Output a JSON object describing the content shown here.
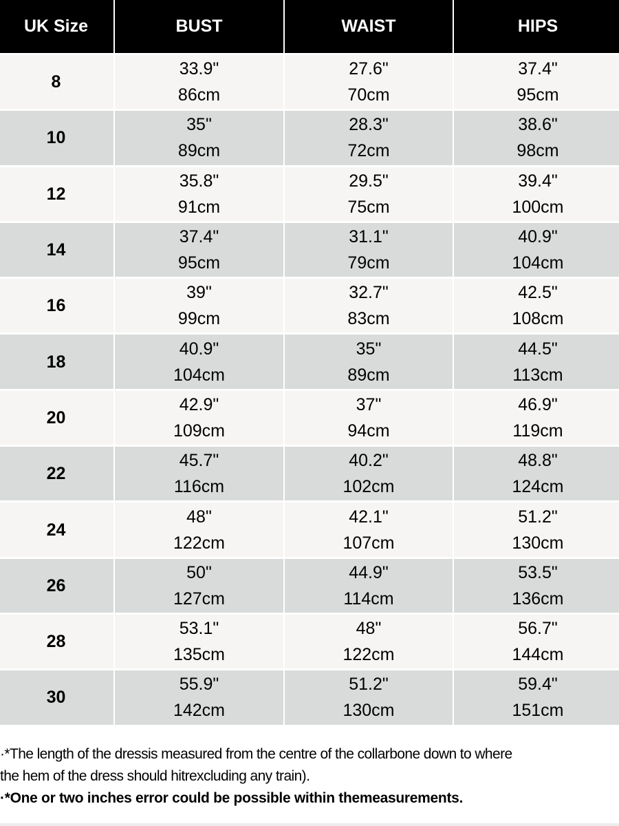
{
  "headers": [
    "UK Size",
    "BUST",
    "WAIST",
    "HIPS"
  ],
  "rows": [
    {
      "size": "8",
      "bust": [
        "33.9\"",
        "86cm"
      ],
      "waist": [
        "27.6\"",
        "70cm"
      ],
      "hips": [
        "37.4\"",
        "95cm"
      ]
    },
    {
      "size": "10",
      "bust": [
        "35\"",
        "89cm"
      ],
      "waist": [
        "28.3\"",
        "72cm"
      ],
      "hips": [
        "38.6\"",
        "98cm"
      ]
    },
    {
      "size": "12",
      "bust": [
        "35.8\"",
        "91cm"
      ],
      "waist": [
        "29.5\"",
        "75cm"
      ],
      "hips": [
        "39.4\"",
        "100cm"
      ]
    },
    {
      "size": "14",
      "bust": [
        "37.4\"",
        "95cm"
      ],
      "waist": [
        "31.1\"",
        "79cm"
      ],
      "hips": [
        "40.9\"",
        "104cm"
      ]
    },
    {
      "size": "16",
      "bust": [
        "39\"",
        "99cm"
      ],
      "waist": [
        "32.7\"",
        "83cm"
      ],
      "hips": [
        "42.5\"",
        "108cm"
      ]
    },
    {
      "size": "18",
      "bust": [
        "40.9\"",
        "104cm"
      ],
      "waist": [
        "35\"",
        "89cm"
      ],
      "hips": [
        "44.5\"",
        "113cm"
      ]
    },
    {
      "size": "20",
      "bust": [
        "42.9\"",
        "109cm"
      ],
      "waist": [
        "37\"",
        "94cm"
      ],
      "hips": [
        "46.9\"",
        "119cm"
      ]
    },
    {
      "size": "22",
      "bust": [
        "45.7\"",
        "116cm"
      ],
      "waist": [
        "40.2\"",
        "102cm"
      ],
      "hips": [
        "48.8\"",
        "124cm"
      ]
    },
    {
      "size": "24",
      "bust": [
        "48\"",
        "122cm"
      ],
      "waist": [
        "42.1\"",
        "107cm"
      ],
      "hips": [
        "51.2\"",
        "130cm"
      ]
    },
    {
      "size": "26",
      "bust": [
        "50\"",
        "127cm"
      ],
      "waist": [
        "44.9\"",
        "114cm"
      ],
      "hips": [
        "53.5\"",
        "136cm"
      ]
    },
    {
      "size": "28",
      "bust": [
        "53.1\"",
        "135cm"
      ],
      "waist": [
        "48\"",
        "122cm"
      ],
      "hips": [
        "56.7\"",
        "144cm"
      ]
    },
    {
      "size": "30",
      "bust": [
        "55.9\"",
        "142cm"
      ],
      "waist": [
        "51.2\"",
        "130cm"
      ],
      "hips": [
        "59.4\"",
        "151cm"
      ]
    }
  ],
  "notes": {
    "line1": "·*The length of the dressis measured from the centre of the collarbone down to where",
    "line2": "the hem of the dress should hitrexcluding any train).",
    "line3": "·*One or two inches error could be possible within themeasurements."
  },
  "colors": {
    "header_bg": "#000000",
    "row_light": "#f6f5f3",
    "row_dark": "#d9dbda"
  }
}
